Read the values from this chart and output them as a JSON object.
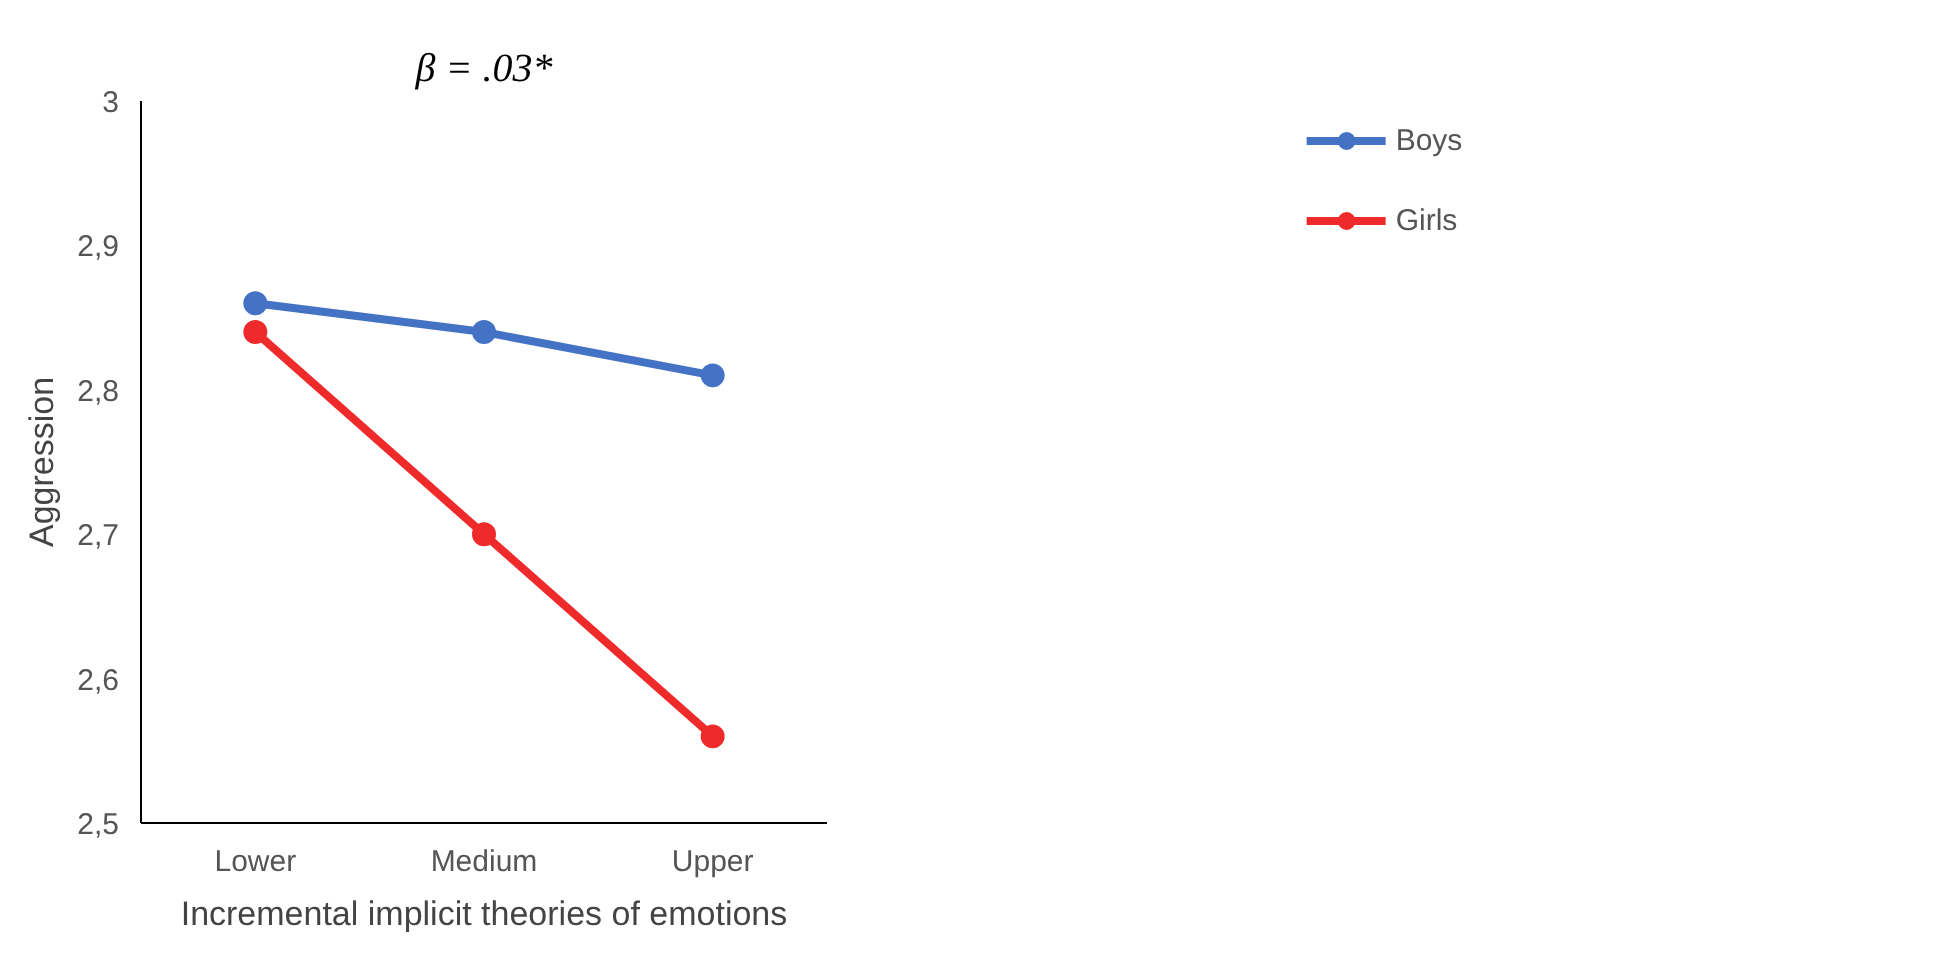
{
  "chart_data": {
    "type": "line",
    "title": "β = .03*",
    "xlabel": "Incremental implicit theories of emotions",
    "ylabel": "Aggression",
    "categories": [
      "Lower",
      "Medium",
      "Upper"
    ],
    "series": [
      {
        "name": "Boys",
        "color": "#4472c4",
        "values": [
          2.86,
          2.84,
          2.81
        ]
      },
      {
        "name": "Girls",
        "color": "#ee2a2a",
        "values": [
          2.84,
          2.7,
          2.56
        ]
      }
    ],
    "ylim": [
      2.5,
      3
    ],
    "yticks": [
      {
        "value": 2.5,
        "label": "2,5"
      },
      {
        "value": 2.6,
        "label": "2,6"
      },
      {
        "value": 2.7,
        "label": "2,7"
      },
      {
        "value": 2.8,
        "label": "2,8"
      },
      {
        "value": 2.9,
        "label": "2,9"
      },
      {
        "value": 3,
        "label": "3"
      }
    ],
    "grid": false,
    "legend": "top right",
    "marker": "circle",
    "line_style": "solid"
  }
}
